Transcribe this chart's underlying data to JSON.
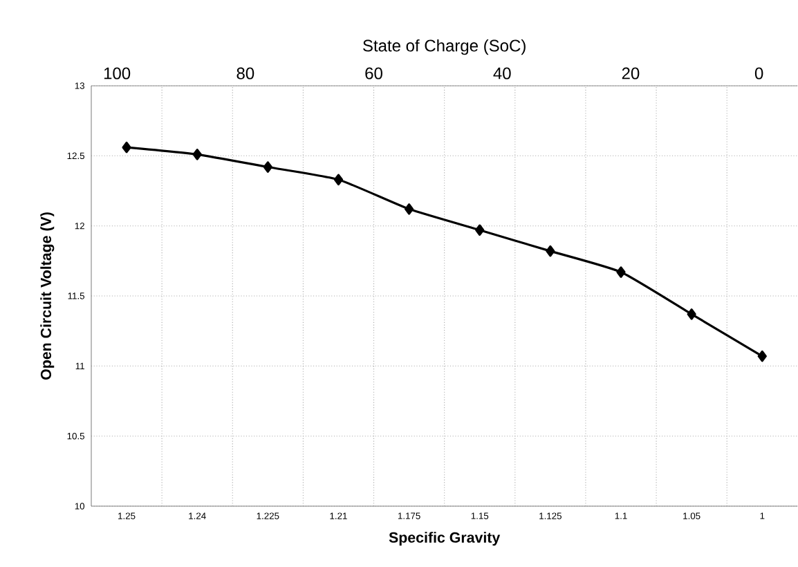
{
  "chart_data": {
    "type": "line",
    "xlabel": "Specific Gravity",
    "ylabel": "Open Circuit Voltage (V)",
    "x2label": "State of Charge (SoC)",
    "categories": [
      "1.25",
      "1.24",
      "1.225",
      "1.21",
      "1.175",
      "1.15",
      "1.125",
      "1.1",
      "1.05",
      "1"
    ],
    "series": [
      {
        "color": "#000000",
        "values": [
          12.56,
          12.51,
          12.42,
          12.33,
          12.12,
          11.97,
          11.82,
          11.67,
          11.37,
          11.07
        ]
      }
    ],
    "ylim": [
      10,
      13
    ],
    "yticks": [
      10,
      10.5,
      11,
      11.5,
      12,
      12.5,
      13
    ],
    "x2lim": [
      104,
      -6
    ],
    "x2ticks": [
      100,
      80,
      60,
      40,
      20,
      0
    ],
    "grid": true,
    "marker": "diamond",
    "line_style": "solid"
  }
}
